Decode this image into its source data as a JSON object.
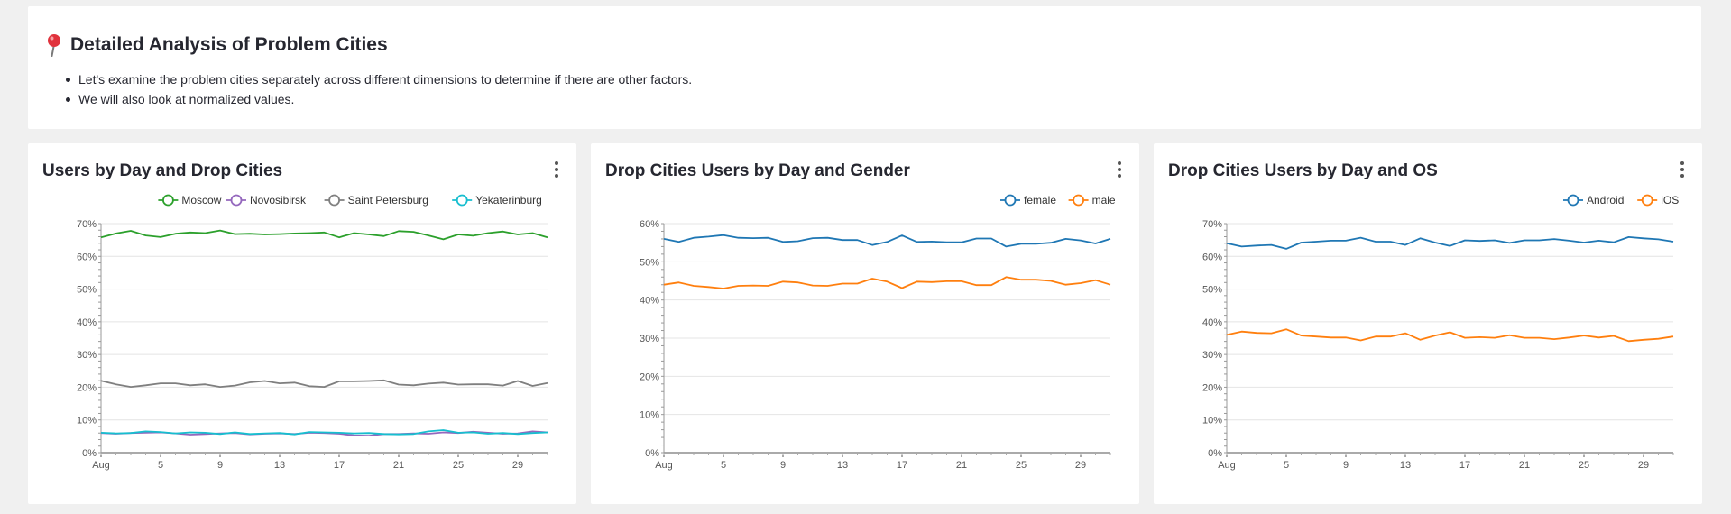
{
  "intro": {
    "title": "Detailed Analysis of Problem Cities",
    "icon": "pushpin-icon",
    "bullets": [
      "Let's examine the problem cities separately across different dimensions to determine if there are other factors.",
      "We will also look at normalized values."
    ]
  },
  "colors": {
    "green": "#2ca02c",
    "purple": "#9467bd",
    "gray": "#7f7f7f",
    "teal": "#17becf",
    "blue": "#1f77b4",
    "orange": "#ff7f0e"
  },
  "chart_data": [
    {
      "type": "line",
      "title": "Users by Day and Drop Cities",
      "x_tick_labels": [
        "Aug",
        "5",
        "9",
        "13",
        "17",
        "21",
        "25",
        "29"
      ],
      "x_tick_days": [
        1,
        5,
        9,
        13,
        17,
        21,
        25,
        29
      ],
      "x_range": [
        1,
        31
      ],
      "y_tick_labels": [
        "0%",
        "10%",
        "20%",
        "30%",
        "40%",
        "50%",
        "60%",
        "70%"
      ],
      "ylim": [
        0,
        70
      ],
      "grid": true,
      "legend": "top-right",
      "series": [
        {
          "name": "Moscow",
          "color": "#2ca02c",
          "values": [
            65.8,
            67,
            67.8,
            66.4,
            65.9,
            66.9,
            67.3,
            67.1,
            67.9,
            66.8,
            66.9,
            66.7,
            66.8,
            67,
            67.1,
            67.3,
            65.8,
            67.1,
            66.7,
            66.2,
            67.7,
            67.5,
            66.4,
            65.2,
            66.7,
            66.3,
            67.1,
            67.6,
            66.7,
            67.1,
            65.8
          ]
        },
        {
          "name": "Novosibirsk",
          "color": "#9467bd",
          "values": [
            6,
            5.8,
            6,
            6.1,
            6.2,
            5.9,
            5.5,
            5.7,
            5.9,
            6,
            5.6,
            5.8,
            5.9,
            5.7,
            6.1,
            6,
            5.8,
            5.3,
            5.2,
            5.7,
            5.7,
            5.9,
            5.8,
            6.2,
            6,
            6.4,
            6.1,
            5.8,
            5.9,
            6.5,
            6.2
          ]
        },
        {
          "name": "Saint Petersburg",
          "color": "#7f7f7f",
          "values": [
            22,
            20.9,
            20.1,
            20.6,
            21.2,
            21.2,
            20.6,
            20.9,
            20.1,
            20.5,
            21.5,
            21.9,
            21.2,
            21.4,
            20.3,
            20.1,
            21.8,
            21.8,
            21.9,
            22.1,
            20.8,
            20.6,
            21.1,
            21.4,
            20.8,
            20.9,
            20.9,
            20.5,
            21.9,
            20.4,
            21.3
          ]
        },
        {
          "name": "Yekaterinburg",
          "color": "#17becf",
          "values": [
            6.1,
            5.9,
            6,
            6.5,
            6.3,
            5.9,
            6.2,
            6.1,
            5.7,
            6.2,
            5.7,
            5.9,
            6,
            5.6,
            6.3,
            6.2,
            6.1,
            5.9,
            6,
            5.7,
            5.6,
            5.7,
            6.5,
            6.9,
            6.1,
            6.2,
            5.8,
            6,
            5.7,
            6,
            6.2
          ]
        }
      ]
    },
    {
      "type": "line",
      "title": "Drop Cities Users by Day and Gender",
      "x_tick_labels": [
        "Aug",
        "5",
        "9",
        "13",
        "17",
        "21",
        "25",
        "29"
      ],
      "x_tick_days": [
        1,
        5,
        9,
        13,
        17,
        21,
        25,
        29
      ],
      "x_range": [
        1,
        31
      ],
      "y_tick_labels": [
        "0%",
        "10%",
        "20%",
        "30%",
        "40%",
        "50%",
        "60%"
      ],
      "ylim": [
        0,
        60
      ],
      "grid": true,
      "legend": "top-right",
      "series": [
        {
          "name": "female",
          "color": "#1f77b4",
          "values": [
            56,
            55.2,
            56.3,
            56.6,
            57,
            56.3,
            56.2,
            56.3,
            55.2,
            55.4,
            56.2,
            56.3,
            55.7,
            55.7,
            54.4,
            55.2,
            56.9,
            55.2,
            55.3,
            55.1,
            55.1,
            56.1,
            56.1,
            54,
            54.7,
            54.7,
            55,
            56,
            55.6,
            54.8,
            56
          ]
        },
        {
          "name": "male",
          "color": "#ff7f0e",
          "values": [
            44,
            44.6,
            43.7,
            43.4,
            43,
            43.7,
            43.8,
            43.7,
            44.8,
            44.6,
            43.8,
            43.7,
            44.3,
            44.3,
            45.6,
            44.8,
            43.1,
            44.8,
            44.7,
            44.9,
            44.9,
            43.9,
            43.9,
            46,
            45.3,
            45.3,
            45,
            44,
            44.4,
            45.2,
            44
          ]
        }
      ]
    },
    {
      "type": "line",
      "title": "Drop Cities Users by Day and OS",
      "x_tick_labels": [
        "Aug",
        "5",
        "9",
        "13",
        "17",
        "21",
        "25",
        "29"
      ],
      "x_tick_days": [
        1,
        5,
        9,
        13,
        17,
        21,
        25,
        29
      ],
      "x_range": [
        1,
        31
      ],
      "y_tick_labels": [
        "0%",
        "10%",
        "20%",
        "30%",
        "40%",
        "50%",
        "60%",
        "70%"
      ],
      "ylim": [
        0,
        70
      ],
      "grid": true,
      "legend": "top-right",
      "series": [
        {
          "name": "Android",
          "color": "#1f77b4",
          "values": [
            64,
            63,
            63.3,
            63.5,
            62.3,
            64.2,
            64.5,
            64.8,
            64.8,
            65.7,
            64.5,
            64.5,
            63.5,
            65.5,
            64.2,
            63.2,
            64.9,
            64.7,
            64.9,
            64.1,
            64.9,
            64.9,
            65.3,
            64.8,
            64.2,
            64.8,
            64.3,
            65.9,
            65.5,
            65.2,
            64.5
          ]
        },
        {
          "name": "iOS",
          "color": "#ff7f0e",
          "values": [
            36,
            37,
            36.6,
            36.5,
            37.7,
            35.8,
            35.5,
            35.2,
            35.2,
            34.3,
            35.5,
            35.5,
            36.5,
            34.5,
            35.8,
            36.8,
            35.1,
            35.3,
            35.1,
            35.9,
            35.1,
            35.1,
            34.7,
            35.2,
            35.8,
            35.2,
            35.7,
            34.1,
            34.5,
            34.8,
            35.5
          ]
        }
      ]
    }
  ]
}
